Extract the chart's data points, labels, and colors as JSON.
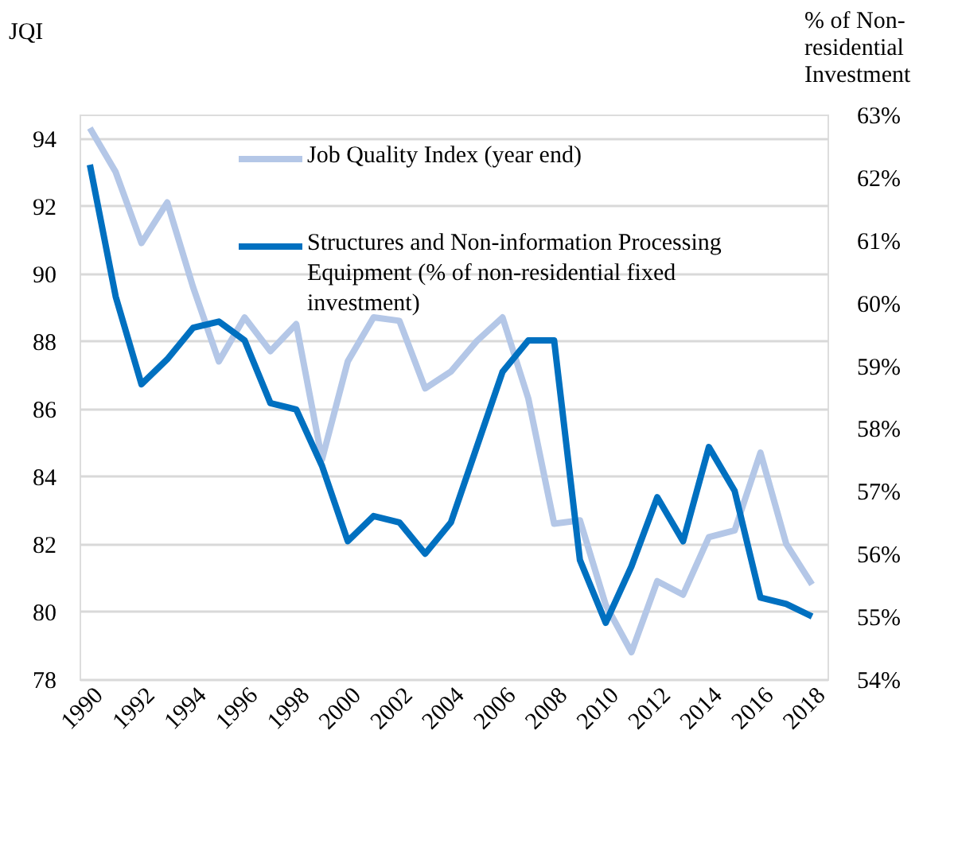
{
  "chart_data": {
    "type": "line",
    "xlabel": null,
    "ylabel": "JQI",
    "y2label": "% of Non-residential Investment",
    "x": [
      1990,
      1991,
      1992,
      1993,
      1994,
      1995,
      1996,
      1997,
      1998,
      1999,
      2000,
      2001,
      2002,
      2003,
      2004,
      2005,
      2006,
      2007,
      2008,
      2009,
      2010,
      2011,
      2012,
      2013,
      2014,
      2015,
      2016,
      2017,
      2018
    ],
    "series": [
      {
        "name": "Job Quality Index (year end)",
        "color": "#b4c7e7",
        "values": [
          94.3,
          93.0,
          90.9,
          92.1,
          89.6,
          87.4,
          88.7,
          87.7,
          88.5,
          84.5,
          87.4,
          88.7,
          88.6,
          86.6,
          87.1,
          88.0,
          88.7,
          86.3,
          82.6,
          82.7,
          80.2,
          78.8,
          80.9,
          80.5,
          82.2,
          82.4,
          84.7,
          82.0,
          80.8
        ]
      },
      {
        "name": "Structures and Non-information Processing Equipment (% of non-residential fixed investment)",
        "color": "#0070c0",
        "axis": "y2",
        "values": [
          62.2,
          60.1,
          58.7,
          59.1,
          59.6,
          59.7,
          59.4,
          58.4,
          58.3,
          57.4,
          56.2,
          56.6,
          56.5,
          56.0,
          56.5,
          57.7,
          58.9,
          59.4,
          59.4,
          55.9,
          54.9,
          55.8,
          56.9,
          56.2,
          57.7,
          57.0,
          55.3,
          55.2,
          55.0
        ]
      }
    ],
    "xlim": [
      1989.6,
      2018.6
    ],
    "xticks": [
      1990,
      1992,
      1994,
      1996,
      1998,
      2000,
      2002,
      2004,
      2006,
      2008,
      2010,
      2012,
      2014,
      2016,
      2018
    ],
    "ylim": [
      78,
      94.7
    ],
    "yticks": [
      78,
      80,
      82,
      84,
      86,
      88,
      90,
      92,
      94
    ],
    "y2lim": [
      54,
      63
    ],
    "y2ticks": [
      {
        "value": 54,
        "label": "54%"
      },
      {
        "value": 55,
        "label": "55%"
      },
      {
        "value": 56,
        "label": "56%"
      },
      {
        "value": 57,
        "label": "57%"
      },
      {
        "value": 58,
        "label": "58%"
      },
      {
        "value": 59,
        "label": "59%"
      },
      {
        "value": 60,
        "label": "60%"
      },
      {
        "value": 61,
        "label": "61%"
      },
      {
        "value": 62,
        "label": "62%"
      },
      {
        "value": 63,
        "label": "63%"
      }
    ],
    "grid": "y",
    "legend": "top",
    "line_style": "solid",
    "marker": "none"
  }
}
